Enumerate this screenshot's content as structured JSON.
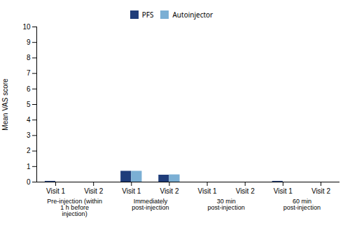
{
  "chart_data": {
    "type": "bar",
    "ylabel": "Mean VAS score",
    "categories": [
      "Visit 1",
      "Visit 2",
      "Visit 1",
      "Visit 2",
      "Visit 1",
      "Visit 2",
      "Visit 1",
      "Visit 2"
    ],
    "groups": [
      "Pre-injection (within\n1 h before\ninjection)",
      "Immediately\npost-injection",
      "30 min\npost-injection",
      "60 min\npost-injection"
    ],
    "series": [
      {
        "name": "PFS",
        "color": "#1f3d7a",
        "values": [
          0.05,
          0.0,
          0.7,
          0.45,
          0.0,
          0.0,
          0.05,
          0.0
        ]
      },
      {
        "name": "Autoinjector",
        "color": "#7bafd4",
        "values": [
          0.0,
          0.0,
          0.7,
          0.47,
          0.0,
          0.0,
          0.0,
          0.0
        ]
      }
    ],
    "ylim": [
      0,
      10
    ],
    "yticks": [
      0,
      1,
      2,
      3,
      4,
      5,
      6,
      7,
      8,
      9,
      10
    ],
    "legend": "top",
    "grid": false
  }
}
